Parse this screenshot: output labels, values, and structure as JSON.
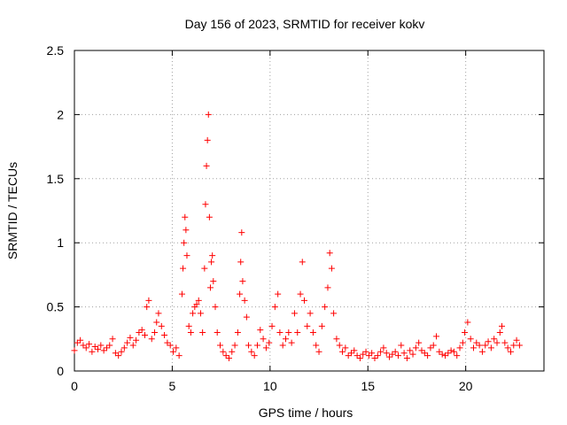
{
  "chart_data": {
    "type": "scatter",
    "title": "Day 156 of 2023, SRMTID for receiver kokv",
    "xlabel": "GPS time / hours",
    "ylabel": "SRMTID / TECUs",
    "xlim": [
      0,
      24
    ],
    "ylim": [
      0,
      2.5
    ],
    "xticks": [
      0,
      5,
      10,
      15,
      20
    ],
    "xtick_labels": [
      "0",
      "5",
      "10",
      "15",
      "20"
    ],
    "yticks": [
      0,
      0.5,
      1,
      1.5,
      2,
      2.5
    ],
    "ytick_labels": [
      "0",
      "0.5",
      "1",
      "1.5",
      "2",
      "2.5"
    ],
    "grid": true,
    "marker": "+",
    "series": [
      {
        "name": "SRMTID",
        "color": "#ff0000",
        "x": [
          0.0,
          0.15,
          0.3,
          0.45,
          0.6,
          0.75,
          0.9,
          1.05,
          1.2,
          1.35,
          1.5,
          1.65,
          1.8,
          1.95,
          2.1,
          2.25,
          2.4,
          2.55,
          2.7,
          2.85,
          3.0,
          3.15,
          3.3,
          3.45,
          3.6,
          3.7,
          3.8,
          3.95,
          4.1,
          4.2,
          4.3,
          4.45,
          4.6,
          4.75,
          4.9,
          5.05,
          5.2,
          5.35,
          5.5,
          5.55,
          5.6,
          5.65,
          5.7,
          5.75,
          5.85,
          5.95,
          6.05,
          6.15,
          6.25,
          6.35,
          6.45,
          6.55,
          6.65,
          6.7,
          6.75,
          6.8,
          6.85,
          6.9,
          6.95,
          7.0,
          7.05,
          7.1,
          7.2,
          7.3,
          7.45,
          7.6,
          7.75,
          7.9,
          8.05,
          8.2,
          8.35,
          8.45,
          8.5,
          8.55,
          8.6,
          8.7,
          8.8,
          8.9,
          9.05,
          9.2,
          9.35,
          9.5,
          9.65,
          9.8,
          9.95,
          10.1,
          10.25,
          10.4,
          10.5,
          10.65,
          10.8,
          10.95,
          11.1,
          11.25,
          11.4,
          11.55,
          11.65,
          11.75,
          11.9,
          12.05,
          12.2,
          12.35,
          12.5,
          12.65,
          12.8,
          12.95,
          13.05,
          13.15,
          13.25,
          13.4,
          13.55,
          13.7,
          13.85,
          14.0,
          14.15,
          14.3,
          14.45,
          14.6,
          14.75,
          14.9,
          15.05,
          15.2,
          15.35,
          15.5,
          15.65,
          15.8,
          15.95,
          16.1,
          16.25,
          16.4,
          16.55,
          16.7,
          16.85,
          17.0,
          17.15,
          17.3,
          17.45,
          17.6,
          17.75,
          17.9,
          18.05,
          18.2,
          18.35,
          18.5,
          18.65,
          18.8,
          18.95,
          19.1,
          19.25,
          19.4,
          19.55,
          19.7,
          19.85,
          19.95,
          20.1,
          20.25,
          20.4,
          20.55,
          20.7,
          20.85,
          21.0,
          21.15,
          21.3,
          21.45,
          21.6,
          21.75,
          21.85,
          22.0,
          22.15,
          22.3,
          22.45,
          22.6,
          22.75
        ],
        "y": [
          0.16,
          0.22,
          0.24,
          0.2,
          0.18,
          0.21,
          0.15,
          0.19,
          0.17,
          0.2,
          0.16,
          0.18,
          0.2,
          0.25,
          0.14,
          0.12,
          0.15,
          0.18,
          0.22,
          0.26,
          0.2,
          0.24,
          0.3,
          0.32,
          0.28,
          0.5,
          0.55,
          0.25,
          0.3,
          0.38,
          0.45,
          0.35,
          0.28,
          0.22,
          0.2,
          0.15,
          0.18,
          0.12,
          0.6,
          0.8,
          1.0,
          1.2,
          1.1,
          0.9,
          0.35,
          0.3,
          0.45,
          0.5,
          0.52,
          0.55,
          0.45,
          0.3,
          0.8,
          1.3,
          1.6,
          1.8,
          2.0,
          1.2,
          0.65,
          0.85,
          0.9,
          0.7,
          0.5,
          0.3,
          0.2,
          0.15,
          0.12,
          0.1,
          0.15,
          0.2,
          0.3,
          0.6,
          0.85,
          1.08,
          0.7,
          0.55,
          0.42,
          0.2,
          0.15,
          0.12,
          0.2,
          0.32,
          0.25,
          0.18,
          0.22,
          0.35,
          0.5,
          0.6,
          0.3,
          0.2,
          0.25,
          0.3,
          0.22,
          0.45,
          0.3,
          0.6,
          0.85,
          0.55,
          0.35,
          0.45,
          0.3,
          0.2,
          0.15,
          0.35,
          0.5,
          0.65,
          0.92,
          0.8,
          0.45,
          0.25,
          0.2,
          0.15,
          0.18,
          0.12,
          0.14,
          0.16,
          0.12,
          0.1,
          0.13,
          0.15,
          0.12,
          0.14,
          0.1,
          0.12,
          0.15,
          0.18,
          0.14,
          0.11,
          0.13,
          0.15,
          0.12,
          0.2,
          0.14,
          0.1,
          0.16,
          0.13,
          0.18,
          0.22,
          0.16,
          0.14,
          0.12,
          0.18,
          0.2,
          0.27,
          0.15,
          0.13,
          0.12,
          0.14,
          0.16,
          0.15,
          0.12,
          0.18,
          0.22,
          0.3,
          0.38,
          0.25,
          0.18,
          0.22,
          0.2,
          0.15,
          0.2,
          0.23,
          0.18,
          0.25,
          0.22,
          0.3,
          0.35,
          0.22,
          0.18,
          0.15,
          0.2,
          0.24,
          0.2
        ]
      }
    ]
  }
}
